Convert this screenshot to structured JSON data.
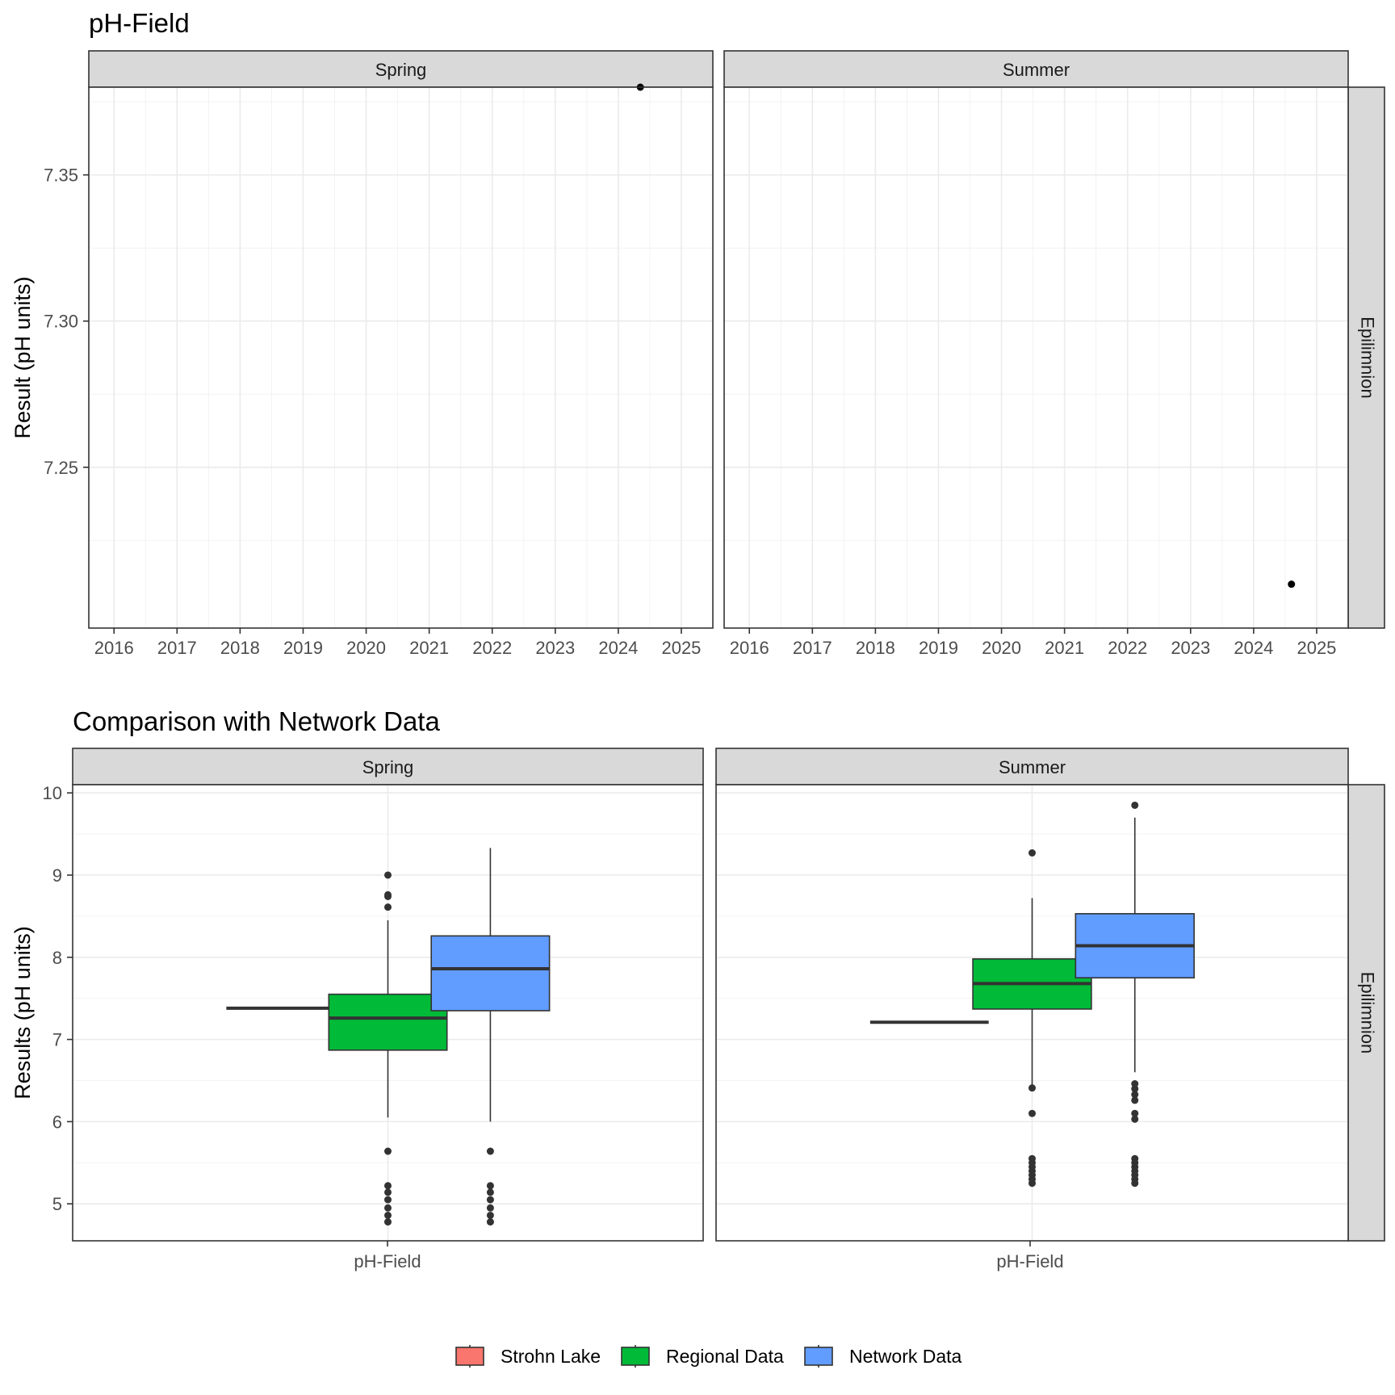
{
  "chart_data": [
    {
      "type": "scatter",
      "title": "pH-Field",
      "ylabel": "Result (pH units)",
      "xlabel": "",
      "facet_cols": [
        "Spring",
        "Summer"
      ],
      "facet_row": "Epilimnion",
      "x_ticks": [
        "2016",
        "2017",
        "2018",
        "2019",
        "2020",
        "2021",
        "2022",
        "2023",
        "2024",
        "2025"
      ],
      "xlim": [
        2015.6,
        2025.5
      ],
      "y_ticks": [
        "7.25",
        "7.30",
        "7.35"
      ],
      "ylim": [
        7.195,
        7.38
      ],
      "grid": true,
      "panels": [
        {
          "facet": "Spring",
          "points": [
            {
              "x": 2024.35,
              "y": 7.38
            }
          ]
        },
        {
          "facet": "Summer",
          "points": [
            {
              "x": 2024.6,
              "y": 7.21
            }
          ]
        }
      ]
    },
    {
      "type": "box",
      "title": "Comparison with Network Data",
      "ylabel": "Results (pH units)",
      "xlabel": "",
      "facet_cols": [
        "Spring",
        "Summer"
      ],
      "facet_row": "Epilimnion",
      "category": "pH-Field",
      "y_ticks": [
        "5",
        "6",
        "7",
        "8",
        "9",
        "10"
      ],
      "ylim": [
        4.55,
        10.1
      ],
      "grid": true,
      "legend": {
        "position": "bottom",
        "items": [
          {
            "label": "Strohn Lake",
            "color": "#F8766D"
          },
          {
            "label": "Regional Data",
            "color": "#00BA38"
          },
          {
            "label": "Network Data",
            "color": "#619CFF"
          }
        ]
      },
      "panels": [
        {
          "facet": "Spring",
          "boxes": [
            {
              "series": "Strohn Lake",
              "min": 7.38,
              "q1": 7.38,
              "median": 7.38,
              "q3": 7.38,
              "max": 7.38,
              "outliers": []
            },
            {
              "series": "Regional Data",
              "min": 6.05,
              "q1": 6.87,
              "median": 7.26,
              "q3": 7.55,
              "max": 8.45,
              "outliers": [
                9.0,
                8.76,
                8.74,
                8.61,
                5.64,
                5.22,
                5.14,
                5.05,
                4.95,
                4.86,
                4.78
              ]
            },
            {
              "series": "Network Data",
              "min": 6.0,
              "q1": 7.35,
              "median": 7.86,
              "q3": 8.26,
              "max": 9.33,
              "outliers": [
                5.64,
                5.22,
                5.14,
                5.05,
                4.95,
                4.86,
                4.78
              ]
            }
          ]
        },
        {
          "facet": "Summer",
          "boxes": [
            {
              "series": "Strohn Lake",
              "min": 7.21,
              "q1": 7.21,
              "median": 7.21,
              "q3": 7.21,
              "max": 7.21,
              "outliers": []
            },
            {
              "series": "Regional Data",
              "min": 6.45,
              "q1": 7.37,
              "median": 7.68,
              "q3": 7.98,
              "max": 8.72,
              "outliers": [
                9.27,
                6.41,
                6.1,
                5.55,
                5.5,
                5.45,
                5.4,
                5.35,
                5.3,
                5.25
              ]
            },
            {
              "series": "Network Data",
              "min": 6.6,
              "q1": 7.75,
              "median": 8.14,
              "q3": 8.53,
              "max": 9.7,
              "outliers": [
                9.85,
                6.46,
                6.4,
                6.33,
                6.26,
                6.1,
                6.03,
                5.55,
                5.5,
                5.45,
                5.4,
                5.35,
                5.3,
                5.25
              ]
            }
          ]
        }
      ]
    }
  ]
}
